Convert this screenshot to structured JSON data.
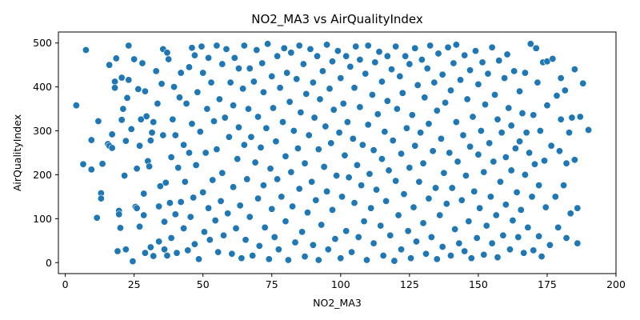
{
  "chart_data": {
    "type": "scatter",
    "title": "NO2_MA3 vs AirQualityIndex",
    "xlabel": "NO2_MA3",
    "ylabel": "AirQualityIndex",
    "xlim": [
      -2.5,
      200
    ],
    "ylim": [
      -25,
      525
    ],
    "x_ticks": [
      0,
      25,
      50,
      75,
      100,
      125,
      150,
      175,
      200
    ],
    "y_ticks": [
      0,
      100,
      200,
      300,
      400,
      500
    ],
    "x_tick_labels": [
      "0",
      "25",
      "50",
      "75",
      "100",
      "125",
      "150",
      "175",
      "200"
    ],
    "y_tick_labels": [
      "0",
      "100",
      "200",
      "300",
      "400",
      "500"
    ],
    "grid": false,
    "legend": "none",
    "marker_color": "#1f77b4",
    "marker_edge_color": "#ffffff",
    "points": [
      [
        4,
        358
      ],
      [
        7.5,
        484
      ],
      [
        6.5,
        224
      ],
      [
        9.5,
        212
      ],
      [
        9.5,
        279
      ],
      [
        11.5,
        102
      ],
      [
        12,
        322
      ],
      [
        13,
        158
      ],
      [
        13,
        146
      ],
      [
        13.5,
        225
      ],
      [
        15.5,
        270
      ],
      [
        16,
        266
      ],
      [
        16,
        450
      ],
      [
        17,
        292
      ],
      [
        17,
        261
      ],
      [
        18,
        412
      ],
      [
        18,
        398
      ],
      [
        18.5,
        465
      ],
      [
        19,
        26
      ],
      [
        19.5,
        118
      ],
      [
        19.5,
        110
      ],
      [
        20,
        79
      ],
      [
        20.5,
        325
      ],
      [
        20.5,
        421
      ],
      [
        21,
        350
      ],
      [
        21.5,
        198
      ],
      [
        22,
        30
      ],
      [
        22,
        277
      ],
      [
        22.5,
        375
      ],
      [
        23,
        494
      ],
      [
        23,
        416
      ],
      [
        24,
        304
      ],
      [
        24.5,
        3
      ],
      [
        25,
        463
      ],
      [
        25.5,
        127
      ],
      [
        26,
        124
      ],
      [
        26,
        214
      ],
      [
        26.5,
        395
      ],
      [
        27,
        82
      ],
      [
        27,
        266
      ],
      [
        27.5,
        326
      ],
      [
        28,
        454
      ],
      [
        28.5,
        157
      ],
      [
        28.5,
        108
      ],
      [
        29,
        22
      ],
      [
        29,
        390
      ],
      [
        29.5,
        333
      ],
      [
        30,
        231
      ],
      [
        30.5,
        219
      ],
      [
        31,
        35
      ],
      [
        31,
        278
      ],
      [
        31.5,
        296
      ],
      [
        32,
        15
      ],
      [
        32,
        320
      ],
      [
        33,
        436
      ],
      [
        33.5,
        362
      ],
      [
        34,
        128
      ],
      [
        34,
        48
      ],
      [
        34.5,
        174
      ],
      [
        35,
        407
      ],
      [
        35.5,
        290
      ],
      [
        35.5,
        486
      ],
      [
        36,
        30
      ],
      [
        36,
        93
      ],
      [
        36.5,
        182
      ],
      [
        37,
        478
      ],
      [
        37,
        16
      ],
      [
        37.5,
        463
      ],
      [
        38,
        136
      ],
      [
        38.5,
        240
      ],
      [
        38.5,
        56
      ],
      [
        39,
        326
      ],
      [
        39.5,
        400
      ],
      [
        40,
        290
      ],
      [
        40,
        110
      ],
      [
        40.5,
        22
      ],
      [
        41,
        216
      ],
      [
        41.5,
        376
      ],
      [
        42,
        138
      ],
      [
        42,
        432
      ],
      [
        43,
        268
      ],
      [
        43,
        78
      ],
      [
        43.5,
        184
      ],
      [
        44,
        362
      ],
      [
        44.5,
        28
      ],
      [
        45,
        445
      ],
      [
        45,
        250
      ],
      [
        45.5,
        104
      ],
      [
        46,
        489
      ],
      [
        46,
        316
      ],
      [
        46.5,
        148
      ],
      [
        47,
        42
      ],
      [
        47,
        472
      ],
      [
        47.5,
        222
      ],
      [
        48,
        388
      ],
      [
        48.5,
        8
      ],
      [
        49,
        298
      ],
      [
        49.5,
        492
      ],
      [
        50,
        160
      ],
      [
        50,
        432
      ],
      [
        50.5,
        70
      ],
      [
        51,
        250
      ],
      [
        51.5,
        350
      ],
      [
        52,
        124
      ],
      [
        52,
        466
      ],
      [
        52.5,
        52
      ],
      [
        53,
        410
      ],
      [
        53.5,
        188
      ],
      [
        54,
        322
      ],
      [
        54.5,
        96
      ],
      [
        55,
        494
      ],
      [
        55,
        258
      ],
      [
        55.5,
        24
      ],
      [
        56,
        372
      ],
      [
        56.5,
        140
      ],
      [
        57,
        452
      ],
      [
        57,
        204
      ],
      [
        57.5,
        62
      ],
      [
        58,
        330
      ],
      [
        58.5,
        486
      ],
      [
        59,
        112
      ],
      [
        59.5,
        286
      ],
      [
        60,
        410
      ],
      [
        60.5,
        20
      ],
      [
        61,
        172
      ],
      [
        61,
        358
      ],
      [
        61.5,
        466
      ],
      [
        62,
        78
      ],
      [
        62.5,
        236
      ],
      [
        63,
        442
      ],
      [
        63,
        308
      ],
      [
        63.5,
        130
      ],
      [
        64,
        10
      ],
      [
        64.5,
        396
      ],
      [
        65,
        268
      ],
      [
        65,
        494
      ],
      [
        65.5,
        52
      ],
      [
        66,
        190
      ],
      [
        66.5,
        350
      ],
      [
        67,
        442
      ],
      [
        67,
        104
      ],
      [
        67.5,
        286
      ],
      [
        68,
        16
      ],
      [
        68.5,
        412
      ],
      [
        69,
        228
      ],
      [
        69.5,
        484
      ],
      [
        70,
        146
      ],
      [
        70,
        332
      ],
      [
        70.5,
        38
      ],
      [
        71,
        262
      ],
      [
        71.5,
        454
      ],
      [
        72,
        176
      ],
      [
        72,
        388
      ],
      [
        72.5,
        80
      ],
      [
        73,
        306
      ],
      [
        73.5,
        498
      ],
      [
        74,
        8
      ],
      [
        74.5,
        214
      ],
      [
        75,
        424
      ],
      [
        75,
        122
      ],
      [
        75.5,
        352
      ],
      [
        76,
        58
      ],
      [
        76.5,
        276
      ],
      [
        77,
        470
      ],
      [
        77,
        190
      ],
      [
        77.5,
        30
      ],
      [
        78,
        398
      ],
      [
        78.5,
        150
      ],
      [
        79,
        320
      ],
      [
        79.5,
        488
      ],
      [
        80,
        94
      ],
      [
        80,
        242
      ],
      [
        80.5,
        432
      ],
      [
        81,
        6
      ],
      [
        81.5,
        366
      ],
      [
        82,
        206
      ],
      [
        82,
        478
      ],
      [
        82.5,
        128
      ],
      [
        83,
        300
      ],
      [
        83.5,
        46
      ],
      [
        84,
        418
      ],
      [
        84.5,
        260
      ],
      [
        85,
        494
      ],
      [
        85,
        168
      ],
      [
        85.5,
        342
      ],
      [
        86,
        70
      ],
      [
        86.5,
        452
      ],
      [
        87,
        226
      ],
      [
        87,
        14
      ],
      [
        87.5,
        384
      ],
      [
        88,
        114
      ],
      [
        88.5,
        290
      ],
      [
        89,
        486
      ],
      [
        89.5,
        184
      ],
      [
        90,
        40
      ],
      [
        90,
        410
      ],
      [
        90.5,
        330
      ],
      [
        91,
        142
      ],
      [
        91.5,
        470
      ],
      [
        92,
        258
      ],
      [
        92,
        6
      ],
      [
        92.5,
        372
      ],
      [
        93,
        86
      ],
      [
        93.5,
        436
      ],
      [
        94,
        218
      ],
      [
        94.5,
        310
      ],
      [
        95,
        496
      ],
      [
        95,
        162
      ],
      [
        95.5,
        30
      ],
      [
        96,
        396
      ],
      [
        96.5,
        272
      ],
      [
        97,
        120
      ],
      [
        97,
        458
      ],
      [
        97.5,
        348
      ],
      [
        98,
        54
      ],
      [
        98.5,
        198
      ],
      [
        99,
        482
      ],
      [
        99.5,
        296
      ],
      [
        100,
        10
      ],
      [
        100,
        420
      ],
      [
        100.5,
        150
      ],
      [
        101,
        362
      ],
      [
        101.5,
        244
      ],
      [
        102,
        470
      ],
      [
        102,
        72
      ],
      [
        102.5,
        320
      ],
      [
        103,
        194
      ],
      [
        103.5,
        446
      ],
      [
        104,
        24
      ],
      [
        104.5,
        282
      ],
      [
        105,
        398
      ],
      [
        105,
        136
      ],
      [
        105.5,
        492
      ],
      [
        106,
        222
      ],
      [
        106.5,
        58
      ],
      [
        107,
        354
      ],
      [
        107,
        462
      ],
      [
        107.5,
        176
      ],
      [
        108,
        268
      ],
      [
        108.5,
        94
      ],
      [
        109,
        430
      ],
      [
        109.5,
        6
      ],
      [
        110,
        314
      ],
      [
        110,
        494
      ],
      [
        110.5,
        202
      ],
      [
        111,
        124
      ],
      [
        111.5,
        382
      ],
      [
        112,
        44
      ],
      [
        112,
        256
      ],
      [
        112.5,
        456
      ],
      [
        113,
        166
      ],
      [
        113.5,
        338
      ],
      [
        114,
        480
      ],
      [
        114.5,
        84
      ],
      [
        115,
        236
      ],
      [
        115,
        412
      ],
      [
        115.5,
        16
      ],
      [
        116,
        298
      ],
      [
        116.5,
        140
      ],
      [
        117,
        470
      ],
      [
        117,
        368
      ],
      [
        117.5,
        210
      ],
      [
        118,
        62
      ],
      [
        118.5,
        440
      ],
      [
        119,
        278
      ],
      [
        119.5,
        4
      ],
      [
        120,
        186
      ],
      [
        120,
        492
      ],
      [
        120.5,
        350
      ],
      [
        121,
        108
      ],
      [
        121.5,
        424
      ],
      [
        122,
        248
      ],
      [
        122,
        30
      ],
      [
        122.5,
        386
      ],
      [
        123,
        156
      ],
      [
        123.5,
        470
      ],
      [
        124,
        306
      ],
      [
        124.5,
        72
      ],
      [
        125,
        216
      ],
      [
        125,
        452
      ],
      [
        125.5,
        10
      ],
      [
        126,
        336
      ],
      [
        126.5,
        126
      ],
      [
        127,
        488
      ],
      [
        127,
        266
      ],
      [
        127.5,
        48
      ],
      [
        128,
        404
      ],
      [
        128.5,
        184
      ],
      [
        129,
        296
      ],
      [
        129.5,
        462
      ],
      [
        130,
        90
      ],
      [
        130,
        226
      ],
      [
        130.5,
        376
      ],
      [
        131,
        20
      ],
      [
        131.5,
        442
      ],
      [
        132,
        146
      ],
      [
        132,
        316
      ],
      [
        132.5,
        494
      ],
      [
        133,
        58
      ],
      [
        133.5,
        254
      ],
      [
        134,
        410
      ],
      [
        134.5,
        170
      ],
      [
        135,
        8
      ],
      [
        135,
        346
      ],
      [
        135.5,
        476
      ],
      [
        136,
        108
      ],
      [
        136.5,
        282
      ],
      [
        137,
        428
      ],
      [
        137,
        36
      ],
      [
        137.5,
        204
      ],
      [
        138,
        364
      ],
      [
        138.5,
        134
      ],
      [
        139,
        490
      ],
      [
        139.5,
        250
      ],
      [
        140,
        16
      ],
      [
        140,
        392
      ],
      [
        140.5,
        170
      ],
      [
        141,
        454
      ],
      [
        141.5,
        76
      ],
      [
        142,
        320
      ],
      [
        142,
        496
      ],
      [
        142.5,
        230
      ],
      [
        143,
        44
      ],
      [
        143.5,
        416
      ],
      [
        144,
        142
      ],
      [
        144.5,
        290
      ],
      [
        145,
        472
      ],
      [
        145,
        26
      ],
      [
        145.5,
        198
      ],
      [
        146,
        372
      ],
      [
        146.5,
        94
      ],
      [
        147,
        438
      ],
      [
        147,
        264
      ],
      [
        147.5,
        10
      ],
      [
        148,
        332
      ],
      [
        148.5,
        162
      ],
      [
        149,
        482
      ],
      [
        149.5,
        56
      ],
      [
        150,
        246
      ],
      [
        150,
        406
      ],
      [
        150.5,
        124
      ],
      [
        151,
        300
      ],
      [
        151.5,
        456
      ],
      [
        152,
        18
      ],
      [
        152,
        206
      ],
      [
        152.5,
        360
      ],
      [
        153,
        84
      ],
      [
        153.5,
        430
      ],
      [
        154,
        272
      ],
      [
        154.5,
        150
      ],
      [
        155,
        490
      ],
      [
        155,
        44
      ],
      [
        155.5,
        230
      ],
      [
        156,
        382
      ],
      [
        156.5,
        108
      ],
      [
        157,
        326
      ],
      [
        157,
        12
      ],
      [
        157.5,
        460
      ],
      [
        158,
        184
      ],
      [
        158.5,
        296
      ],
      [
        159,
        62
      ],
      [
        159.5,
        420
      ],
      [
        160,
        240
      ],
      [
        160,
        132
      ],
      [
        160.5,
        474
      ],
      [
        161,
        352
      ],
      [
        161.5,
        30
      ],
      [
        162,
        210
      ],
      [
        162,
        312
      ],
      [
        162.5,
        96
      ],
      [
        163,
        436
      ],
      [
        163.5,
        260
      ],
      [
        164,
        160
      ],
      [
        164.5,
        58
      ],
      [
        165,
        390
      ],
      [
        165,
        276
      ],
      [
        165.5,
        120
      ],
      [
        166,
        340
      ],
      [
        166.5,
        22
      ],
      [
        167,
        432
      ],
      [
        167,
        200
      ],
      [
        167.5,
        296
      ],
      [
        168,
        80
      ],
      [
        168.5,
        250
      ],
      [
        169,
        498
      ],
      [
        169.5,
        150
      ],
      [
        170,
        336
      ],
      [
        170,
        28
      ],
      [
        170.5,
        224
      ],
      [
        171,
        488
      ],
      [
        171.5,
        410
      ],
      [
        172,
        60
      ],
      [
        172,
        176
      ],
      [
        172.5,
        300
      ],
      [
        173,
        14
      ],
      [
        173.5,
        456
      ],
      [
        174,
        232
      ],
      [
        174.5,
        126
      ],
      [
        175,
        358
      ],
      [
        175,
        458
      ],
      [
        176,
        40
      ],
      [
        176.5,
        266
      ],
      [
        177,
        464
      ],
      [
        178,
        150
      ],
      [
        178.5,
        380
      ],
      [
        179,
        80
      ],
      [
        179.5,
        254
      ],
      [
        180,
        326
      ],
      [
        180,
        420
      ],
      [
        181,
        176
      ],
      [
        181.5,
        392
      ],
      [
        182,
        56
      ],
      [
        182,
        226
      ],
      [
        183,
        296
      ],
      [
        183.5,
        112
      ],
      [
        184,
        330
      ],
      [
        185,
        440
      ],
      [
        185,
        234
      ],
      [
        186,
        44
      ],
      [
        186,
        124
      ],
      [
        187,
        332
      ],
      [
        188,
        408
      ],
      [
        190,
        302
      ]
    ]
  }
}
